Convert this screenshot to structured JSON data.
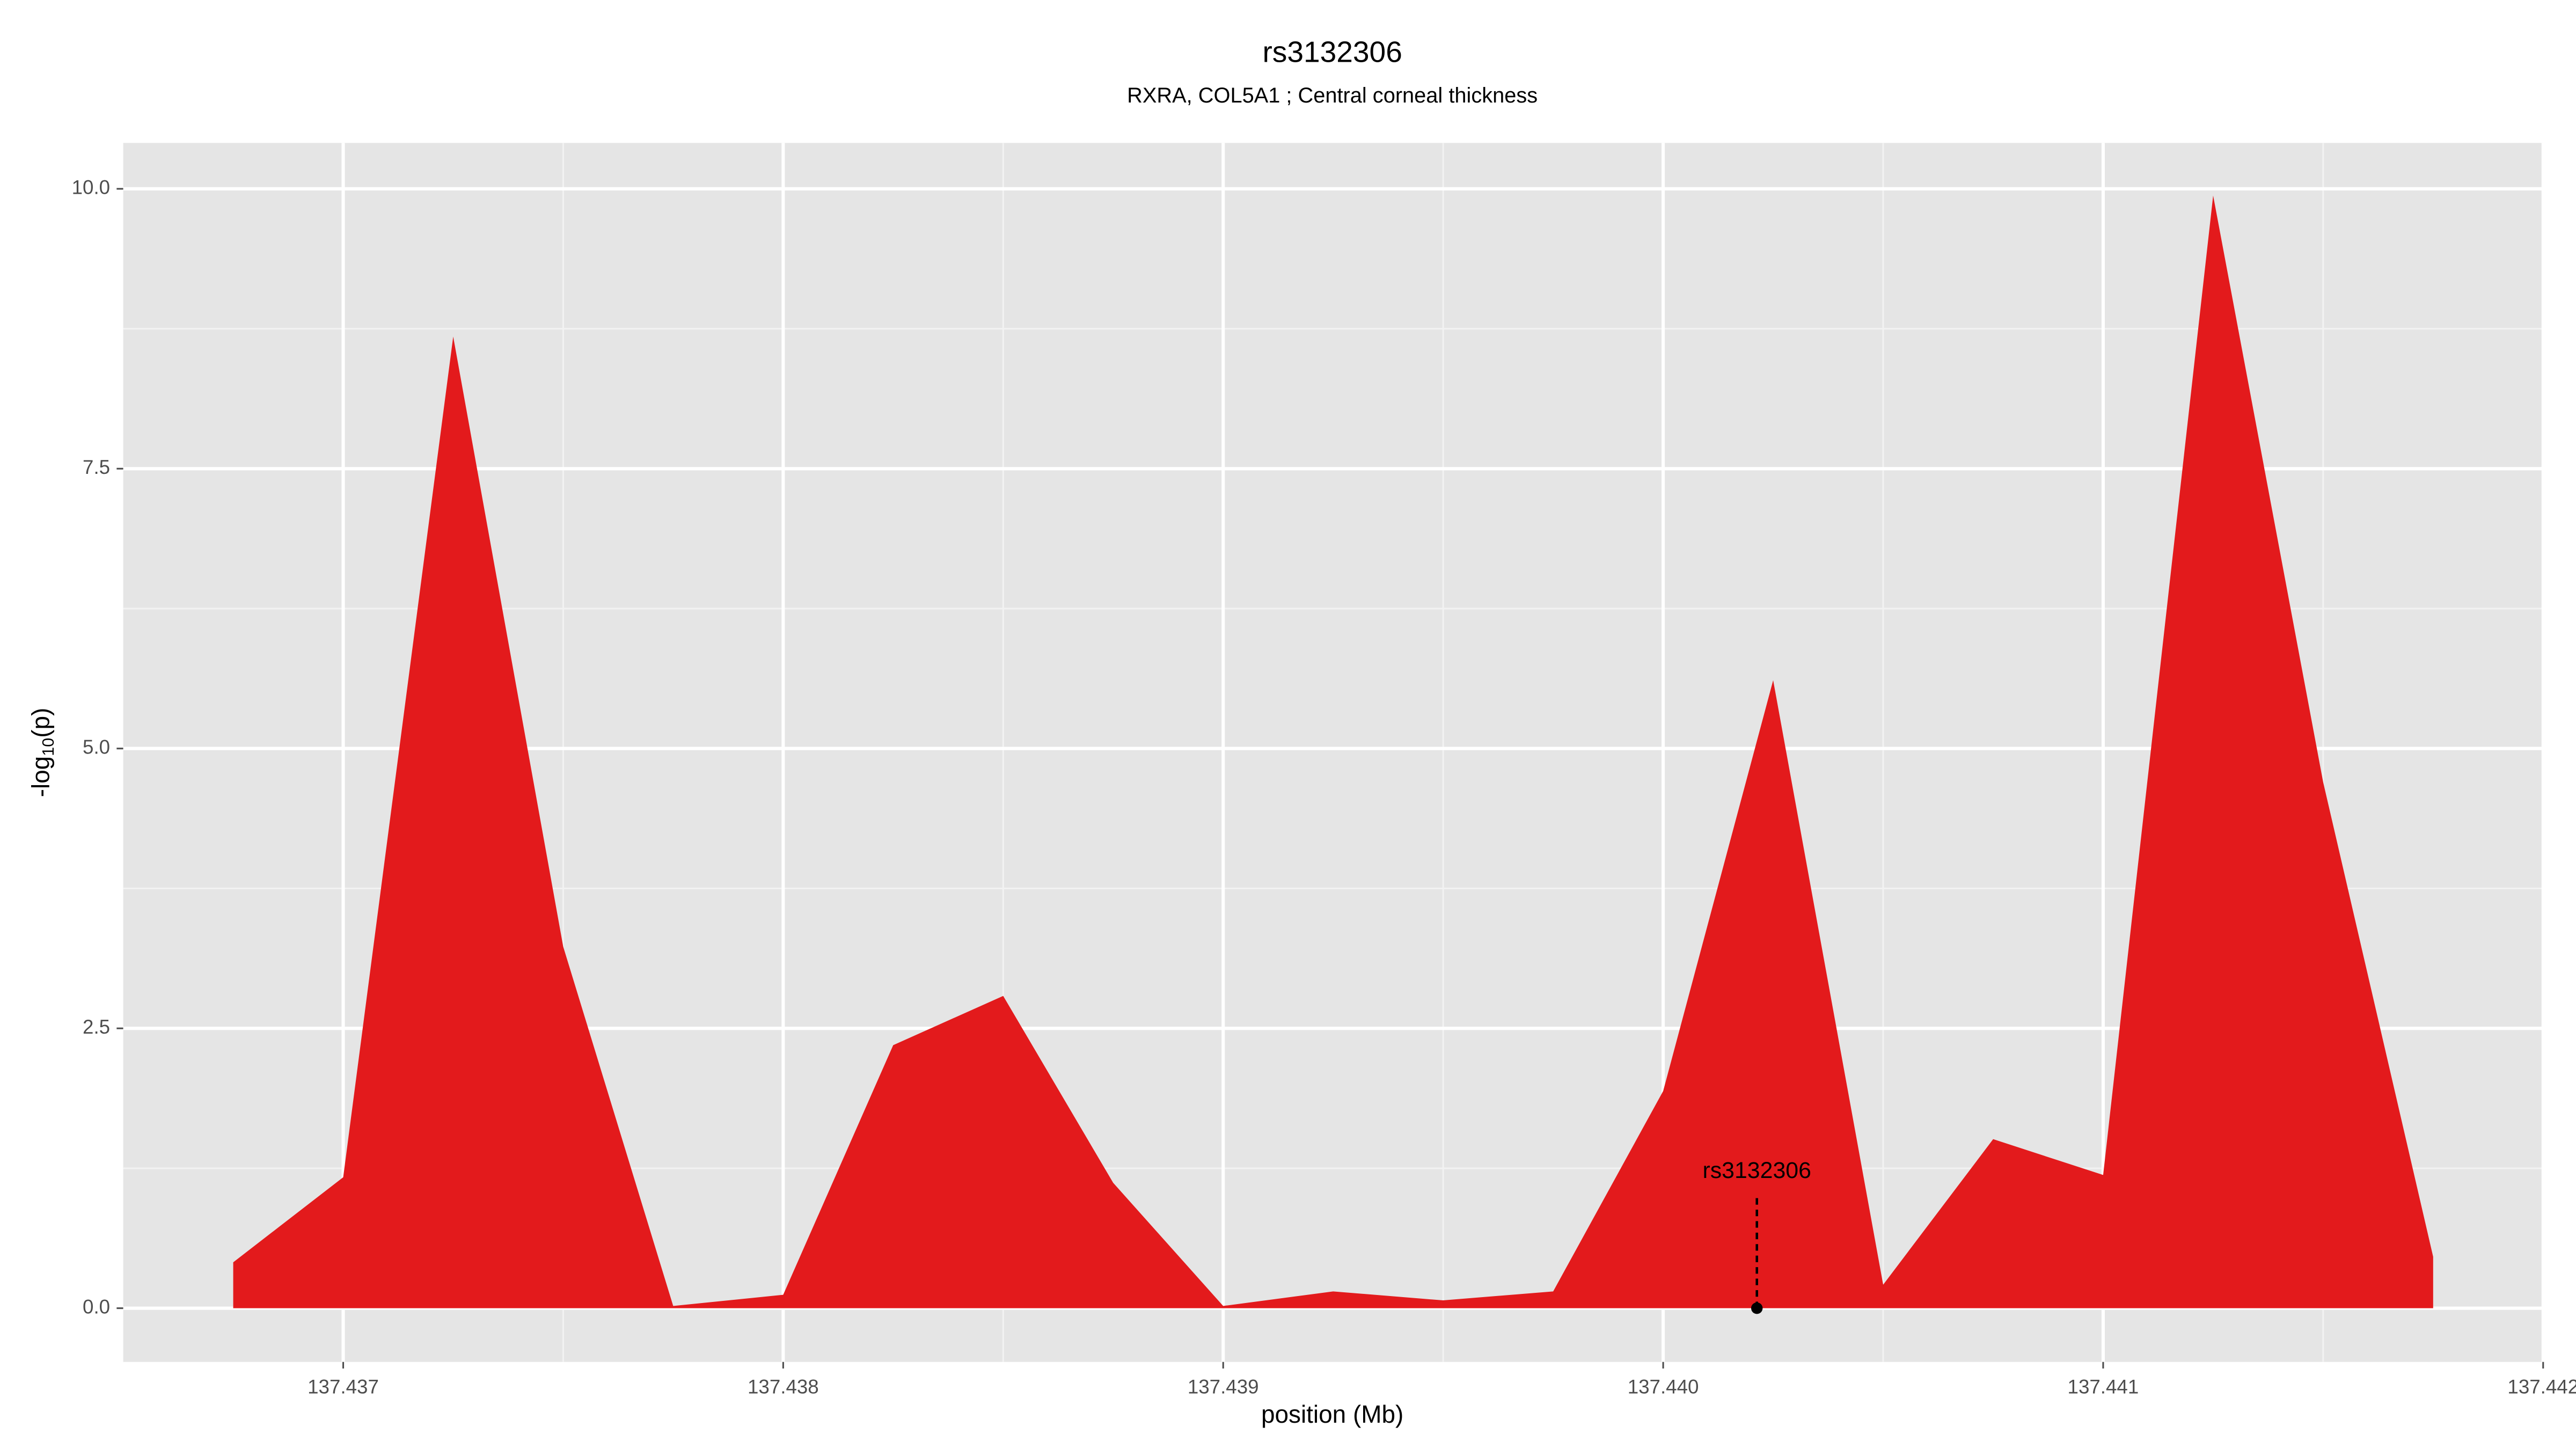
{
  "chart_data": {
    "type": "area",
    "title": "rs3132306",
    "subtitle": "RXRA, COL5A1 ; Central corneal thickness",
    "x_label": "position (Mb)",
    "y_label": "-log",
    "y_label_sub": "10",
    "y_label_end": "(p)",
    "x": [
      137.43675,
      137.437,
      137.43725,
      137.4375,
      137.43775,
      137.438,
      137.43825,
      137.4385,
      137.43875,
      137.439,
      137.43925,
      137.4395,
      137.43975,
      137.44,
      137.44025,
      137.4405,
      137.44075,
      137.441,
      137.44125,
      137.4415,
      137.44175
    ],
    "values": [
      0.41,
      1.17,
      8.68,
      3.23,
      0.02,
      0.12,
      2.35,
      2.79,
      1.12,
      0.02,
      0.15,
      0.07,
      0.15,
      1.94,
      5.61,
      0.21,
      1.51,
      1.19,
      9.94,
      4.7,
      0.46
    ],
    "color": "#e31a1c",
    "annotation": {
      "label": "rs3132306",
      "x": 137.440213,
      "y": 0
    },
    "xlim": [
      137.4365,
      137.442
    ],
    "ylim": [
      -0.48,
      10.41
    ],
    "xticks": [
      137.437,
      137.438,
      137.439,
      {
        "value": 137.44,
        "label": "137.440"
      },
      137.441,
      137.442
    ],
    "yticks": [
      {
        "value": 0,
        "label": "0.0"
      },
      2.5,
      {
        "value": 5,
        "label": "5.0"
      },
      7.5,
      {
        "value": 10,
        "label": "10.0"
      }
    ],
    "x_minor_breaks": [
      137.4375,
      137.4385,
      137.4395,
      137.4405,
      137.4415
    ],
    "y_minor_breaks": [
      1.25,
      3.75,
      6.25,
      8.75
    ],
    "grid": true
  }
}
